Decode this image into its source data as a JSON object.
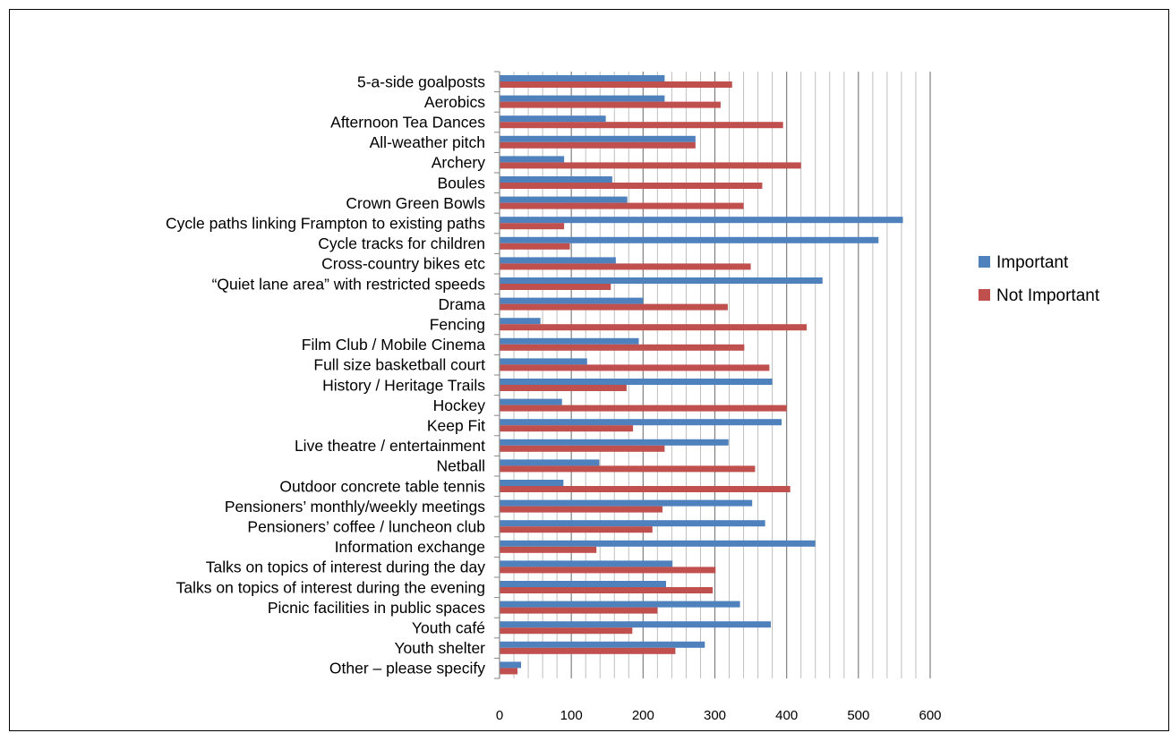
{
  "chart_data": {
    "type": "bar",
    "orientation": "horizontal",
    "title": "",
    "xlabel": "",
    "ylabel": "",
    "xlim": [
      0,
      600
    ],
    "tick_step": 100,
    "minor_step": 20,
    "grid": true,
    "legend_position": "right",
    "categories": [
      "5-a-side goalposts",
      "Aerobics",
      "Afternoon Tea Dances",
      "All-weather pitch",
      "Archery",
      "Boules",
      "Crown Green Bowls",
      "Cycle paths linking Frampton to existing paths",
      "Cycle tracks for children",
      "Cross-country bikes etc",
      "“Quiet lane area” with restricted speeds",
      "Drama",
      "Fencing",
      "Film Club / Mobile Cinema",
      "Full size basketball court",
      "History / Heritage Trails",
      "Hockey",
      "Keep Fit",
      "Live theatre / entertainment",
      "Netball",
      "Outdoor concrete table tennis",
      "Pensioners’ monthly/weekly meetings",
      "Pensioners’ coffee / luncheon club",
      "Information exchange",
      "Talks on topics of interest during the day",
      "Talks on topics of interest during the evening",
      "Picnic facilities in public spaces",
      "Youth café",
      "Youth shelter",
      "Other – please specify"
    ],
    "series": [
      {
        "name": "Important",
        "color": "#4F81BD",
        "values": [
          230,
          230,
          148,
          273,
          90,
          157,
          178,
          562,
          528,
          162,
          450,
          200,
          57,
          194,
          122,
          380,
          87,
          393,
          319,
          139,
          89,
          352,
          370,
          440,
          241,
          232,
          335,
          378,
          286,
          30
        ]
      },
      {
        "name": "Not Important",
        "color": "#C0504D",
        "values": [
          324,
          308,
          395,
          273,
          420,
          366,
          340,
          90,
          98,
          350,
          155,
          318,
          428,
          341,
          376,
          177,
          400,
          186,
          230,
          356,
          405,
          227,
          213,
          135,
          301,
          297,
          220,
          185,
          245,
          25
        ]
      }
    ]
  }
}
